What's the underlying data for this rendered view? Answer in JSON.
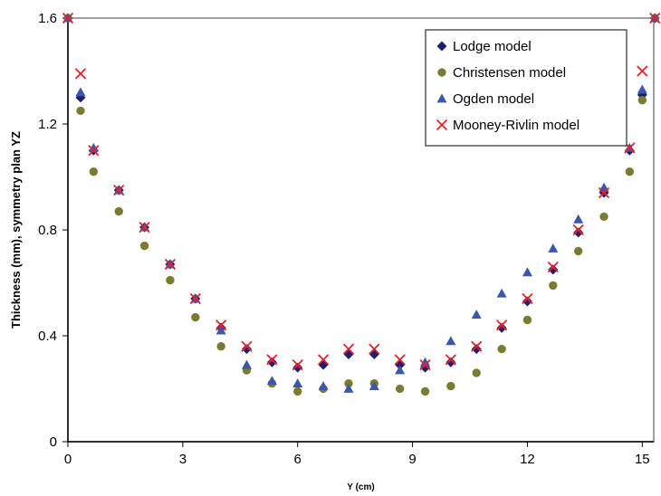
{
  "chart_data": {
    "type": "scatter",
    "xlabel": "Y (cm)",
    "ylabel": "Thickness (mm), symmetry plan YZ",
    "xlim": [
      0,
      15.3
    ],
    "ylim": [
      0,
      1.6
    ],
    "xticks": [
      0,
      3,
      6,
      9,
      12,
      15
    ],
    "yticks": [
      0,
      0.4,
      0.8,
      1.2,
      1.6
    ],
    "xtick_labels": [
      "0",
      "3",
      "6",
      "9",
      "12",
      "15"
    ],
    "ytick_labels": [
      "0",
      "0.4",
      "0.8",
      "1.2",
      "1.6"
    ],
    "grid": false,
    "legend_position": "top-right",
    "series": [
      {
        "name": "Lodge model",
        "marker": "diamond",
        "color": "#1f1f6e",
        "x": [
          0,
          0.33,
          0.67,
          1.33,
          2.0,
          2.67,
          3.33,
          4.0,
          4.67,
          5.33,
          6.0,
          6.67,
          7.33,
          8.0,
          8.67,
          9.33,
          10.0,
          10.67,
          11.33,
          12.0,
          12.67,
          13.33,
          14.0,
          14.67,
          15.0,
          15.33
        ],
        "y": [
          1.6,
          1.3,
          1.1,
          0.95,
          0.81,
          0.67,
          0.54,
          0.43,
          0.35,
          0.3,
          0.28,
          0.29,
          0.33,
          0.33,
          0.29,
          0.28,
          0.3,
          0.35,
          0.43,
          0.53,
          0.65,
          0.79,
          0.94,
          1.1,
          1.31,
          1.6
        ]
      },
      {
        "name": "Christensen model",
        "marker": "circle",
        "color": "#7a7a30",
        "x": [
          0,
          0.33,
          0.67,
          1.33,
          2.0,
          2.67,
          3.33,
          4.0,
          4.67,
          5.33,
          6.0,
          6.67,
          7.33,
          8.0,
          8.67,
          9.33,
          10.0,
          10.67,
          11.33,
          12.0,
          12.67,
          13.33,
          14.0,
          14.67,
          15.0,
          15.33
        ],
        "y": [
          1.6,
          1.25,
          1.02,
          0.87,
          0.74,
          0.61,
          0.47,
          0.36,
          0.27,
          0.22,
          0.19,
          0.2,
          0.22,
          0.22,
          0.2,
          0.19,
          0.21,
          0.26,
          0.35,
          0.46,
          0.59,
          0.72,
          0.85,
          1.02,
          1.29,
          1.6
        ]
      },
      {
        "name": "Ogden model",
        "marker": "triangle",
        "color": "#3a57a8",
        "x": [
          0,
          0.33,
          0.67,
          1.33,
          2.0,
          2.67,
          3.33,
          4.0,
          4.67,
          5.33,
          6.0,
          6.67,
          7.33,
          8.0,
          8.67,
          9.33,
          10.0,
          10.67,
          11.33,
          12.0,
          12.67,
          13.33,
          14.0,
          14.67,
          15.0,
          15.33
        ],
        "y": [
          1.6,
          1.32,
          1.11,
          0.95,
          0.81,
          0.67,
          0.54,
          0.42,
          0.29,
          0.23,
          0.22,
          0.21,
          0.2,
          0.21,
          0.27,
          0.3,
          0.38,
          0.48,
          0.56,
          0.64,
          0.73,
          0.84,
          0.96,
          1.11,
          1.33,
          1.6
        ]
      },
      {
        "name": "Mooney-Rivlin model",
        "marker": "x",
        "color": "#e8202a",
        "x": [
          0,
          0.33,
          0.67,
          1.33,
          2.0,
          2.67,
          3.33,
          4.0,
          4.67,
          5.33,
          6.0,
          6.67,
          7.33,
          8.0,
          8.67,
          9.33,
          10.0,
          10.67,
          11.33,
          12.0,
          12.67,
          13.33,
          14.0,
          14.67,
          15.0,
          15.33
        ],
        "y": [
          1.6,
          1.39,
          1.1,
          0.95,
          0.81,
          0.67,
          0.54,
          0.44,
          0.36,
          0.31,
          0.29,
          0.31,
          0.35,
          0.35,
          0.31,
          0.29,
          0.31,
          0.36,
          0.44,
          0.54,
          0.66,
          0.8,
          0.94,
          1.11,
          1.4,
          1.6
        ]
      }
    ]
  }
}
